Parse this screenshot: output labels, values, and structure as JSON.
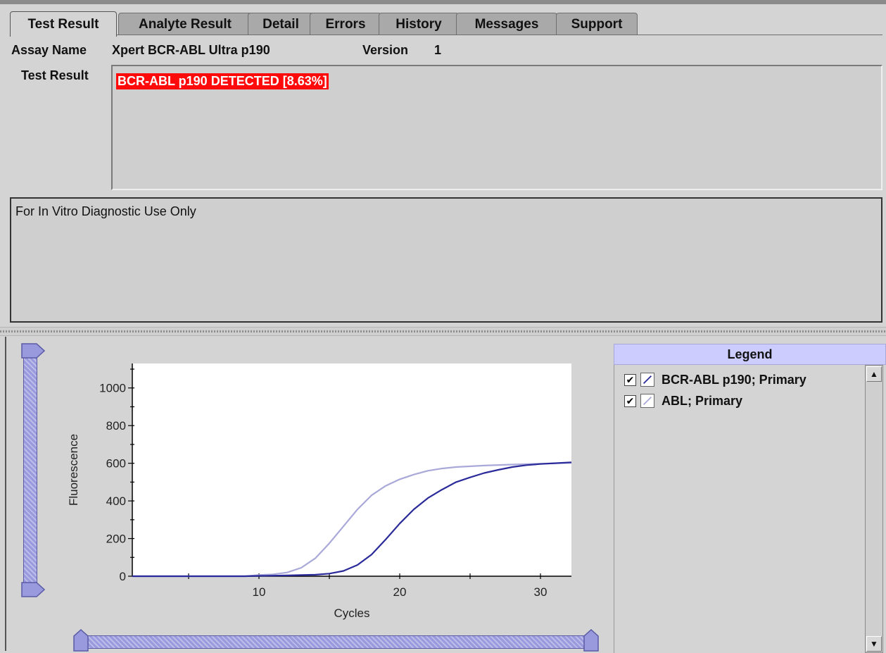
{
  "tabs": [
    {
      "label": "Test Result",
      "active": true
    },
    {
      "label": "Analyte Result",
      "active": false
    },
    {
      "label": "Detail",
      "active": false
    },
    {
      "label": "Errors",
      "active": false
    },
    {
      "label": "History",
      "active": false
    },
    {
      "label": "Messages",
      "active": false
    },
    {
      "label": "Support",
      "active": false
    }
  ],
  "assay": {
    "name_label": "Assay Name",
    "name_value": "Xpert BCR-ABL Ultra p190",
    "version_label": "Version",
    "version_value": "1"
  },
  "test_result": {
    "label": "Test Result",
    "value": "BCR-ABL p190 DETECTED [8.63%]",
    "highlight_color": "#ff0a0a"
  },
  "notice": {
    "text": "For In Vitro Diagnostic Use Only"
  },
  "legend": {
    "header": "Legend",
    "items": [
      {
        "label": "BCR-ABL p190; Primary",
        "checked": true,
        "color": "#2a2a9a"
      },
      {
        "label": "ABL; Primary",
        "checked": true,
        "color": "#a9a9d9"
      }
    ]
  },
  "scroll": {
    "up_icon": "arrow-up-icon",
    "down_icon": "arrow-down-icon"
  },
  "colors": {
    "slider": "#9999dd",
    "legend_header": "#ccccff"
  },
  "chart_data": {
    "type": "line",
    "xlabel": "Cycles",
    "ylabel": "Fluorescence",
    "xlim": [
      1,
      32.2
    ],
    "ylim": [
      0,
      1130
    ],
    "xticks": [
      10,
      20,
      30
    ],
    "yticks": [
      0,
      200,
      400,
      600,
      800,
      1000
    ],
    "grid": false,
    "series": [
      {
        "name": "BCR-ABL p190; Primary",
        "color": "#2a2a9a",
        "x": [
          1,
          9,
          10,
          12,
          14,
          15,
          16,
          17,
          18,
          19,
          20,
          21,
          22,
          23,
          24,
          25,
          26,
          27,
          28,
          29,
          30,
          31,
          32.2
        ],
        "y": [
          0,
          0,
          2,
          4,
          8,
          14,
          28,
          60,
          115,
          195,
          280,
          355,
          415,
          460,
          500,
          525,
          548,
          565,
          580,
          590,
          596,
          600,
          605
        ]
      },
      {
        "name": "ABL; Primary",
        "color": "#a9a9d9",
        "x": [
          1,
          9,
          10,
          11,
          12,
          13,
          14,
          15,
          16,
          17,
          18,
          19,
          20,
          21,
          22,
          23,
          24,
          26,
          28,
          30,
          32.2
        ],
        "y": [
          0,
          0,
          6,
          10,
          20,
          45,
          95,
          175,
          265,
          355,
          430,
          480,
          515,
          540,
          560,
          572,
          580,
          588,
          593,
          598,
          602
        ]
      }
    ]
  }
}
